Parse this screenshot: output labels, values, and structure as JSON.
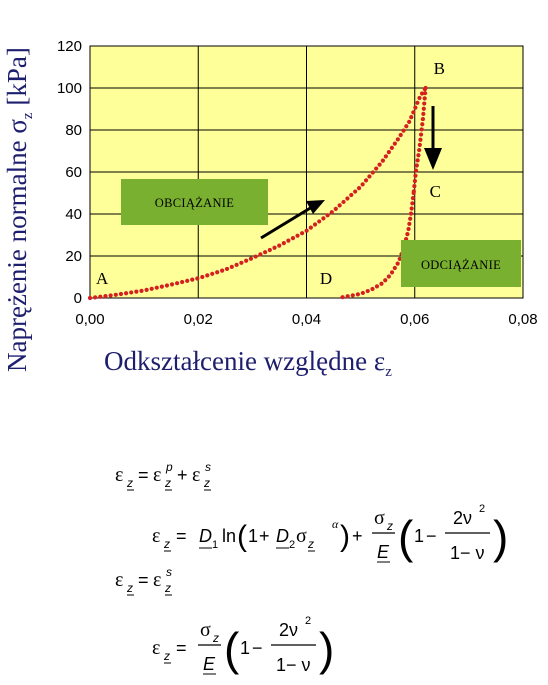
{
  "chart_data": {
    "type": "scatter",
    "xlabel": "Odkształcenie względne ε",
    "xlabel_sub": "z",
    "ylabel": "Naprężenie normalne σ",
    "ylabel_sub": "z",
    "ylabel_unit": " [kPa]",
    "xlim": [
      0,
      0.08
    ],
    "ylim": [
      0,
      120
    ],
    "x_ticks": [
      0,
      0.02,
      0.04,
      0.06,
      0.08
    ],
    "x_tick_labels": [
      "0,00",
      "0,02",
      "0,04",
      "0,06",
      "0,08"
    ],
    "y_ticks": [
      0,
      20,
      40,
      60,
      80,
      100,
      120
    ],
    "y_tick_labels": [
      "0",
      "20",
      "40",
      "60",
      "80",
      "100",
      "120"
    ],
    "grid": true,
    "plot_background": "#ffff99",
    "marker_color": "#d42020",
    "series": [
      {
        "values_x": [
          0,
          0.005,
          0.01,
          0.015,
          0.02,
          0.025,
          0.03,
          0.035,
          0.04,
          0.045,
          0.05,
          0.054,
          0.057,
          0.059,
          0.06,
          0.061,
          0.062
        ],
        "values_y": [
          0,
          1.6,
          3.6,
          6.4,
          9.4,
          13.5,
          19,
          25,
          32,
          41.5,
          53,
          65,
          76,
          84,
          90,
          96,
          100
        ]
      },
      {
        "values_x": [
          0.062,
          0.0615,
          0.0608,
          0.0602,
          0.0598
        ],
        "values_y": [
          100,
          85,
          70,
          60,
          50
        ]
      },
      {
        "values_x": [
          0.0598,
          0.0593,
          0.0588,
          0.058,
          0.057,
          0.0555,
          0.054,
          0.052,
          0.05,
          0.048,
          0.0458
        ],
        "values_y": [
          50,
          40,
          32,
          24,
          17,
          11,
          7,
          4,
          2,
          1,
          0
        ]
      }
    ],
    "point_labels": [
      {
        "text": "A",
        "x": 0.0,
        "y": 0
      },
      {
        "text": "B",
        "x": 0.062,
        "y": 100
      },
      {
        "text": "C",
        "x": 0.0598,
        "y": 50
      },
      {
        "text": "D",
        "x": 0.0458,
        "y": 0
      }
    ],
    "annotations": [
      {
        "text": "OBCIĄŻANIE",
        "background": "#7ab030"
      },
      {
        "text": "ODCIĄŻANIE",
        "background": "#7ab030"
      }
    ]
  },
  "formulas": {
    "eps": "ε",
    "sigma": "σ",
    "nu": "ν",
    "alpha": "α",
    "sub_z": "z",
    "sup_p": "p",
    "sup_s": "s",
    "plus": "+",
    "minus": "−",
    "eq": "=",
    "D1": "D",
    "D1_sub": "1",
    "D2": "D",
    "D2_sub": "2",
    "ln": "ln",
    "one": "1",
    "E": "E",
    "two_nu": "2ν",
    "sq": "2",
    "one_minus_nu": "1− ν"
  }
}
